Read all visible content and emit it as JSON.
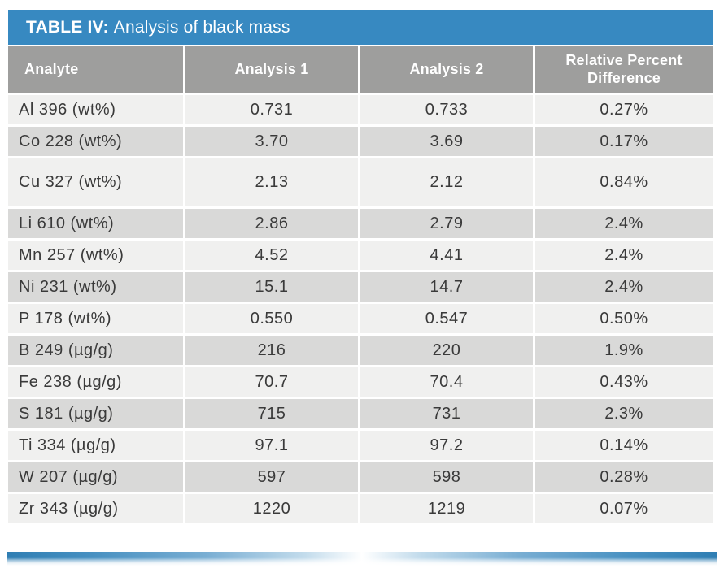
{
  "table": {
    "title_bold": "TABLE IV:",
    "title_rest": "Analysis of black mass",
    "columns": [
      "Analyte",
      "Analysis 1",
      "Analysis 2",
      "Relative Percent Difference"
    ],
    "rows": [
      {
        "analyte": "Al 396 (wt%)",
        "a1": "0.731",
        "a2": "0.733",
        "rpd": "0.27%"
      },
      {
        "analyte": "Co 228 (wt%)",
        "a1": "3.70",
        "a2": "3.69",
        "rpd": "0.17%"
      },
      {
        "analyte": "Cu 327 (wt%)",
        "a1": "2.13",
        "a2": "2.12",
        "rpd": "0.84%",
        "tall": true
      },
      {
        "analyte": "Li 610 (wt%)",
        "a1": "2.86",
        "a2": "2.79",
        "rpd": "2.4%"
      },
      {
        "analyte": "Mn 257 (wt%)",
        "a1": "4.52",
        "a2": "4.41",
        "rpd": "2.4%"
      },
      {
        "analyte": "Ni 231 (wt%)",
        "a1": "15.1",
        "a2": "14.7",
        "rpd": "2.4%"
      },
      {
        "analyte": "P 178 (wt%)",
        "a1": "0.550",
        "a2": "0.547",
        "rpd": "0.50%"
      },
      {
        "analyte": "B 249 (µg/g)",
        "a1": "216",
        "a2": "220",
        "rpd": "1.9%"
      },
      {
        "analyte": "Fe 238 (µg/g)",
        "a1": "70.7",
        "a2": "70.4",
        "rpd": "0.43%"
      },
      {
        "analyte": "S 181 (µg/g)",
        "a1": "715",
        "a2": "731",
        "rpd": "2.3%"
      },
      {
        "analyte": "Ti 334 (µg/g)",
        "a1": "97.1",
        "a2": "97.2",
        "rpd": "0.14%"
      },
      {
        "analyte": "W 207 (µg/g)",
        "a1": "597",
        "a2": "598",
        "rpd": "0.28%"
      },
      {
        "analyte": "Zr 343 (µg/g)",
        "a1": "1220",
        "a2": "1219",
        "rpd": "0.07%"
      }
    ]
  },
  "colors": {
    "header_blue": "#3789c1",
    "header_gray": "#9e9e9d",
    "row_light": "#f0f0ef",
    "row_dark": "#d9d9d8",
    "text": "#3a3a3a"
  }
}
